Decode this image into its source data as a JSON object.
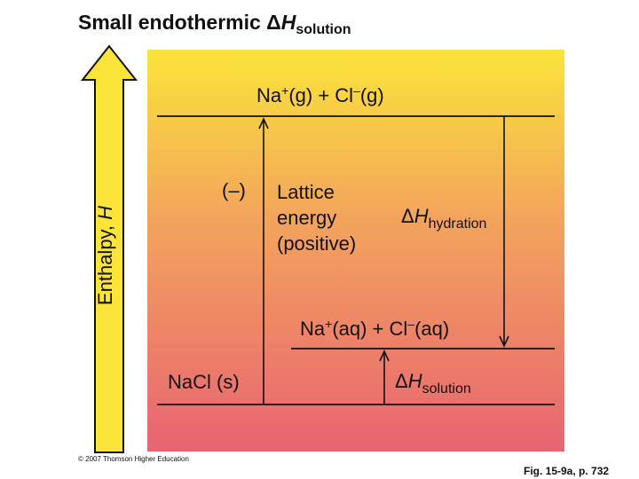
{
  "title": {
    "prefix": "Small endothermic ",
    "delta": "Δ",
    "symbol": "H",
    "subscript": "solution"
  },
  "y_axis": {
    "label_text": "Enthalpy, ",
    "label_symbol": "H"
  },
  "levels": {
    "gas_ions": {
      "na": "Na",
      "na_charge": "+",
      "na_state": "(g) + Cl",
      "cl_charge": "–",
      "cl_state": "(g)"
    },
    "aqueous_ions": {
      "na": "Na",
      "na_charge": "+",
      "na_state": "(aq) + Cl",
      "cl_charge": "–",
      "cl_state": "(aq)"
    },
    "solid": {
      "label": "NaCl (s)"
    }
  },
  "arrows": {
    "lattice": {
      "sign": "(–)",
      "line1": "Lattice",
      "line2": "energy",
      "line3": "(positive)"
    },
    "hydration": {
      "delta": "Δ",
      "symbol": "H",
      "subscript": "hydration"
    },
    "solution": {
      "delta": "Δ",
      "symbol": "H",
      "subscript": "solution"
    }
  },
  "colors": {
    "gradient_top": "#fbe43a",
    "gradient_mid": "#f3a45c",
    "gradient_bottom": "#e86472",
    "arrow_fill": "#fbe43a"
  },
  "footer": {
    "copyright": "© 2007 Thomson Higher Education",
    "figure_ref": "Fig. 15-9a, p. 732"
  }
}
